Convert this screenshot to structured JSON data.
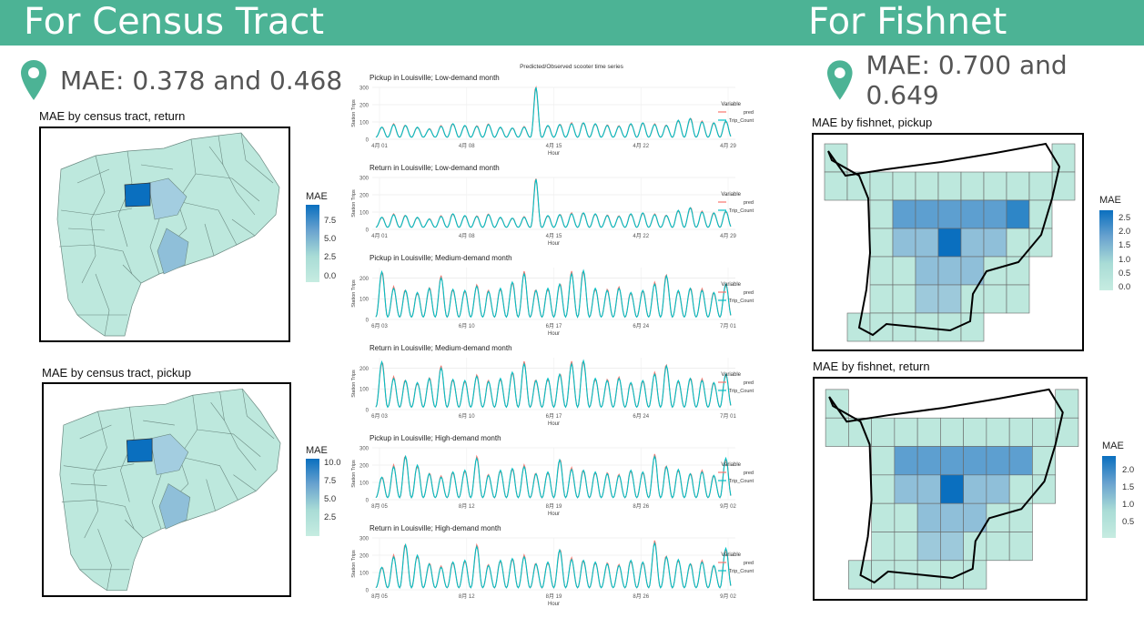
{
  "header": {
    "left_title": "For Census Tract",
    "right_title": "For Fishnet",
    "accent": "#4cb395"
  },
  "left": {
    "pin_icon": "map-pin-icon",
    "mae_text": "MAE: 0.378 and 0.468",
    "panels": [
      {
        "title": "MAE by census tract, return",
        "legend_title": "MAE",
        "legend_ticks": [
          "7.5",
          "5.0",
          "2.5",
          "0.0"
        ]
      },
      {
        "title": "MAE by census tract, pickup",
        "legend_title": "MAE",
        "legend_ticks": [
          "10.0",
          "7.5",
          "5.0",
          "2.5"
        ]
      }
    ]
  },
  "right": {
    "pin_icon": "map-pin-icon",
    "mae_text": "MAE: 0.700 and 0.649",
    "panels": [
      {
        "title": "MAE by fishnet, pickup",
        "legend_title": "MAE",
        "legend_ticks": [
          "2.5",
          "2.0",
          "1.5",
          "1.0",
          "0.5",
          "0.0"
        ]
      },
      {
        "title": "MAE by fishnet, return",
        "legend_title": "MAE",
        "legend_ticks": [
          "2.0",
          "1.5",
          "1.0",
          "0.5"
        ]
      }
    ]
  },
  "center": {
    "main_title": "Predicted/Observed scooter time series",
    "legend_title": "Variable",
    "legend_items": [
      "pred",
      "Trip_Count"
    ],
    "series_colors": {
      "pred": "#f8766d",
      "Trip_Count": "#00bfc4"
    },
    "ylabel": "Station Trips",
    "xlabel": "Hour"
  },
  "chart_data": [
    {
      "type": "line",
      "title": "Pickup in Louisville; Low-demand month",
      "xlabel": "Hour",
      "ylabel": "Station Trips",
      "x_ticks": [
        "4月 01",
        "4月 08",
        "4月 15",
        "4月 22",
        "4月 29"
      ],
      "ylim": [
        0,
        300
      ],
      "y_ticks": [
        0,
        100,
        200,
        300
      ],
      "peak_profile": [
        70,
        85,
        80,
        70,
        60,
        75,
        90,
        80,
        75,
        85,
        70,
        65,
        70,
        75,
        80,
        85,
        90,
        95,
        90,
        80,
        75,
        90,
        95,
        85,
        80,
        110,
        120,
        100,
        95,
        105
      ],
      "spike": {
        "x": "4月 14",
        "y": 300
      },
      "series": [
        {
          "name": "pred"
        },
        {
          "name": "Trip_Count"
        }
      ]
    },
    {
      "type": "line",
      "title": "Return in Louisville; Low-demand month",
      "xlabel": "Hour",
      "ylabel": "Station Trips",
      "x_ticks": [
        "4月 01",
        "4月 08",
        "4月 15",
        "4月 22",
        "4月 29"
      ],
      "ylim": [
        0,
        300
      ],
      "y_ticks": [
        0,
        100,
        200,
        300
      ],
      "peak_profile": [
        70,
        85,
        80,
        70,
        60,
        75,
        90,
        80,
        75,
        85,
        70,
        65,
        70,
        75,
        80,
        85,
        90,
        95,
        90,
        80,
        75,
        90,
        95,
        85,
        80,
        110,
        125,
        100,
        95,
        105
      ],
      "spike": {
        "x": "4月 14",
        "y": 290
      },
      "series": [
        {
          "name": "pred"
        },
        {
          "name": "Trip_Count"
        }
      ]
    },
    {
      "type": "line",
      "title": "Pickup in Louisville; Medium-demand month",
      "xlabel": "Hour",
      "ylabel": "Station Trips",
      "x_ticks": [
        "6月 03",
        "6月 10",
        "6月 17",
        "6月 24",
        "7月 01"
      ],
      "ylim": [
        0,
        250
      ],
      "y_ticks": [
        0,
        100,
        200
      ],
      "peak_profile": [
        230,
        150,
        140,
        130,
        150,
        200,
        145,
        140,
        160,
        135,
        150,
        180,
        220,
        140,
        150,
        170,
        220,
        235,
        150,
        140,
        150,
        130,
        140,
        170,
        210,
        140,
        150,
        140,
        130,
        170
      ],
      "series": [
        {
          "name": "pred"
        },
        {
          "name": "Trip_Count"
        }
      ]
    },
    {
      "type": "line",
      "title": "Return in Louisville; Medium-demand month",
      "xlabel": "Hour",
      "ylabel": "Station Trips",
      "x_ticks": [
        "6月 03",
        "6月 10",
        "6月 17",
        "6月 24",
        "7月 01"
      ],
      "ylim": [
        0,
        250
      ],
      "y_ticks": [
        0,
        100,
        200
      ],
      "peak_profile": [
        230,
        150,
        140,
        130,
        150,
        200,
        145,
        140,
        160,
        135,
        150,
        180,
        220,
        140,
        150,
        170,
        220,
        235,
        150,
        140,
        150,
        130,
        140,
        170,
        210,
        140,
        150,
        140,
        130,
        170
      ],
      "series": [
        {
          "name": "pred"
        },
        {
          "name": "Trip_Count"
        }
      ]
    },
    {
      "type": "line",
      "title": "Pickup in Louisville; High-demand month",
      "xlabel": "Hour",
      "ylabel": "Station Trips",
      "x_ticks": [
        "8月 05",
        "8月 12",
        "8月 19",
        "8月 26",
        "9月 02"
      ],
      "ylim": [
        0,
        300
      ],
      "y_ticks": [
        0,
        100,
        200,
        300
      ],
      "peak_profile": [
        130,
        190,
        250,
        200,
        150,
        130,
        160,
        170,
        240,
        140,
        170,
        180,
        190,
        150,
        160,
        230,
        175,
        170,
        160,
        150,
        140,
        170,
        160,
        250,
        190,
        175,
        150,
        160,
        140,
        240
      ],
      "series": [
        {
          "name": "pred"
        },
        {
          "name": "Trip_Count"
        }
      ]
    },
    {
      "type": "line",
      "title": "Return in Louisville; High-demand month",
      "xlabel": "Hour",
      "ylabel": "Station Trips",
      "x_ticks": [
        "8月 05",
        "8月 12",
        "8月 19",
        "8月 26",
        "9月 02"
      ],
      "ylim": [
        0,
        300
      ],
      "y_ticks": [
        0,
        100,
        200,
        300
      ],
      "peak_profile": [
        130,
        190,
        260,
        200,
        150,
        130,
        160,
        170,
        250,
        140,
        170,
        180,
        190,
        150,
        160,
        230,
        175,
        170,
        160,
        150,
        140,
        170,
        160,
        270,
        190,
        175,
        150,
        160,
        140,
        240
      ],
      "series": [
        {
          "name": "pred"
        },
        {
          "name": "Trip_Count"
        }
      ]
    }
  ]
}
